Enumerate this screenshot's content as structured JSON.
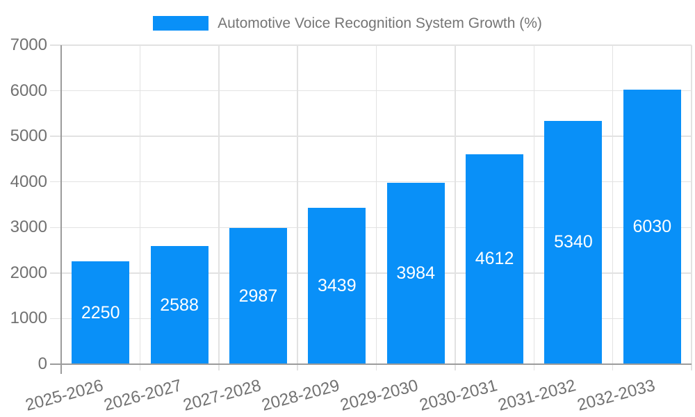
{
  "chart_data": {
    "type": "bar",
    "title": "Automotive Voice Recognition System Growth (%)",
    "categories": [
      "2025-2026",
      "2026-2027",
      "2027-2028",
      "2028-2029",
      "2029-2030",
      "2030-2031",
      "2031-2032",
      "2032-2033"
    ],
    "values": [
      2250,
      2588,
      2987,
      3439,
      3984,
      4612,
      5340,
      6030
    ],
    "xlabel": "",
    "ylabel": "",
    "ylim": [
      0,
      7000
    ],
    "yticks": [
      0,
      1000,
      2000,
      3000,
      4000,
      5000,
      6000,
      7000
    ],
    "grid": "horizontal and vertical gridlines",
    "legend_position": "top-center",
    "x_label_rotation_deg": -15,
    "bar_value_labels": "white, centered inside bars",
    "colors": {
      "bar": "#0990F8",
      "grid": "#E2E2E2",
      "axis": "#9B9B9B",
      "tick_text": "#717171",
      "legend_text": "#757575",
      "bar_label_text": "#FFFFFF",
      "background": "#FFFFFF"
    }
  }
}
